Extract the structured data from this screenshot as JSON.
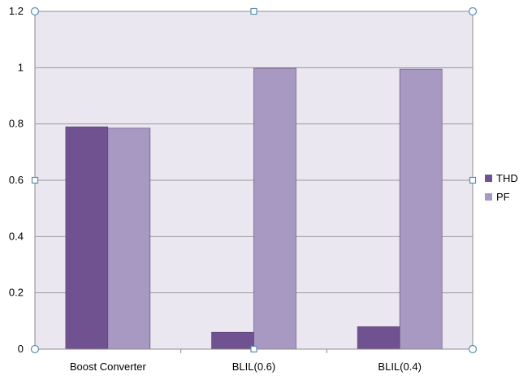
{
  "chart_data": {
    "type": "bar",
    "categories": [
      "Boost Converter",
      "BLIL(0.6)",
      "BLIL(0.4)"
    ],
    "series": [
      {
        "name": "THD",
        "values": [
          0.79,
          0.06,
          0.08
        ],
        "color": "#705290"
      },
      {
        "name": "PF",
        "values": [
          0.785,
          0.998,
          0.995
        ],
        "color": "#a899c2"
      }
    ],
    "ylim": [
      0,
      1.2
    ],
    "yticks": [
      "0",
      "0.2",
      "0.4",
      "0.6",
      "0.8",
      "1",
      "1.2"
    ],
    "grid": true,
    "legend_position": "right",
    "plot_background": "#ebe7f1",
    "gridline_color": "#9a9a9a"
  }
}
